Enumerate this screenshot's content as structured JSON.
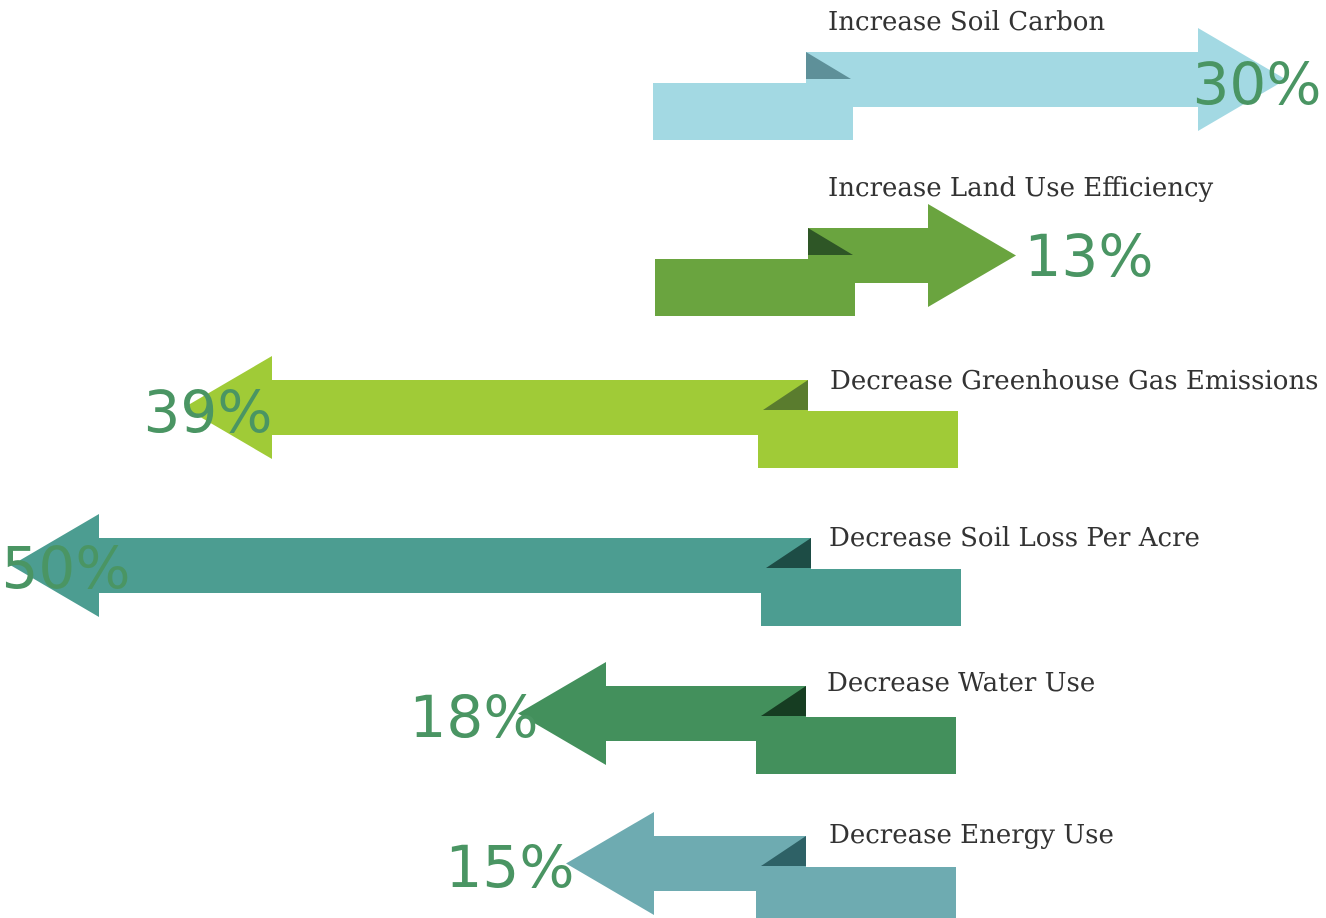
{
  "chart_data": {
    "type": "bar",
    "categories": [
      "Increase Soil Carbon",
      "Increase Land Use Efficiency",
      "Decrease Greenhouse Gas Emissions",
      "Decrease Soil Loss Per Acre",
      "Decrease Water Use",
      "Decrease Energy Use"
    ],
    "series": [
      {
        "values": [
          30,
          13,
          39,
          50,
          18,
          15
        ],
        "value_labels": [
          "30%",
          "13%",
          "39%",
          "50%",
          "18%",
          "15%"
        ],
        "directions": [
          "increase",
          "increase",
          "decrease",
          "decrease",
          "decrease",
          "decrease"
        ],
        "colors": [
          "#a3d9e3",
          "#6aa43f",
          "#a0cb37",
          "#4c9d91",
          "#43905c",
          "#6eabb1"
        ],
        "fold_colors": [
          "#5e9099",
          "#2e5626",
          "#5a7c2e",
          "#1d4c45",
          "#163d22",
          "#2e6166"
        ]
      }
    ],
    "unit": "%",
    "value_color": "#4a9563"
  }
}
